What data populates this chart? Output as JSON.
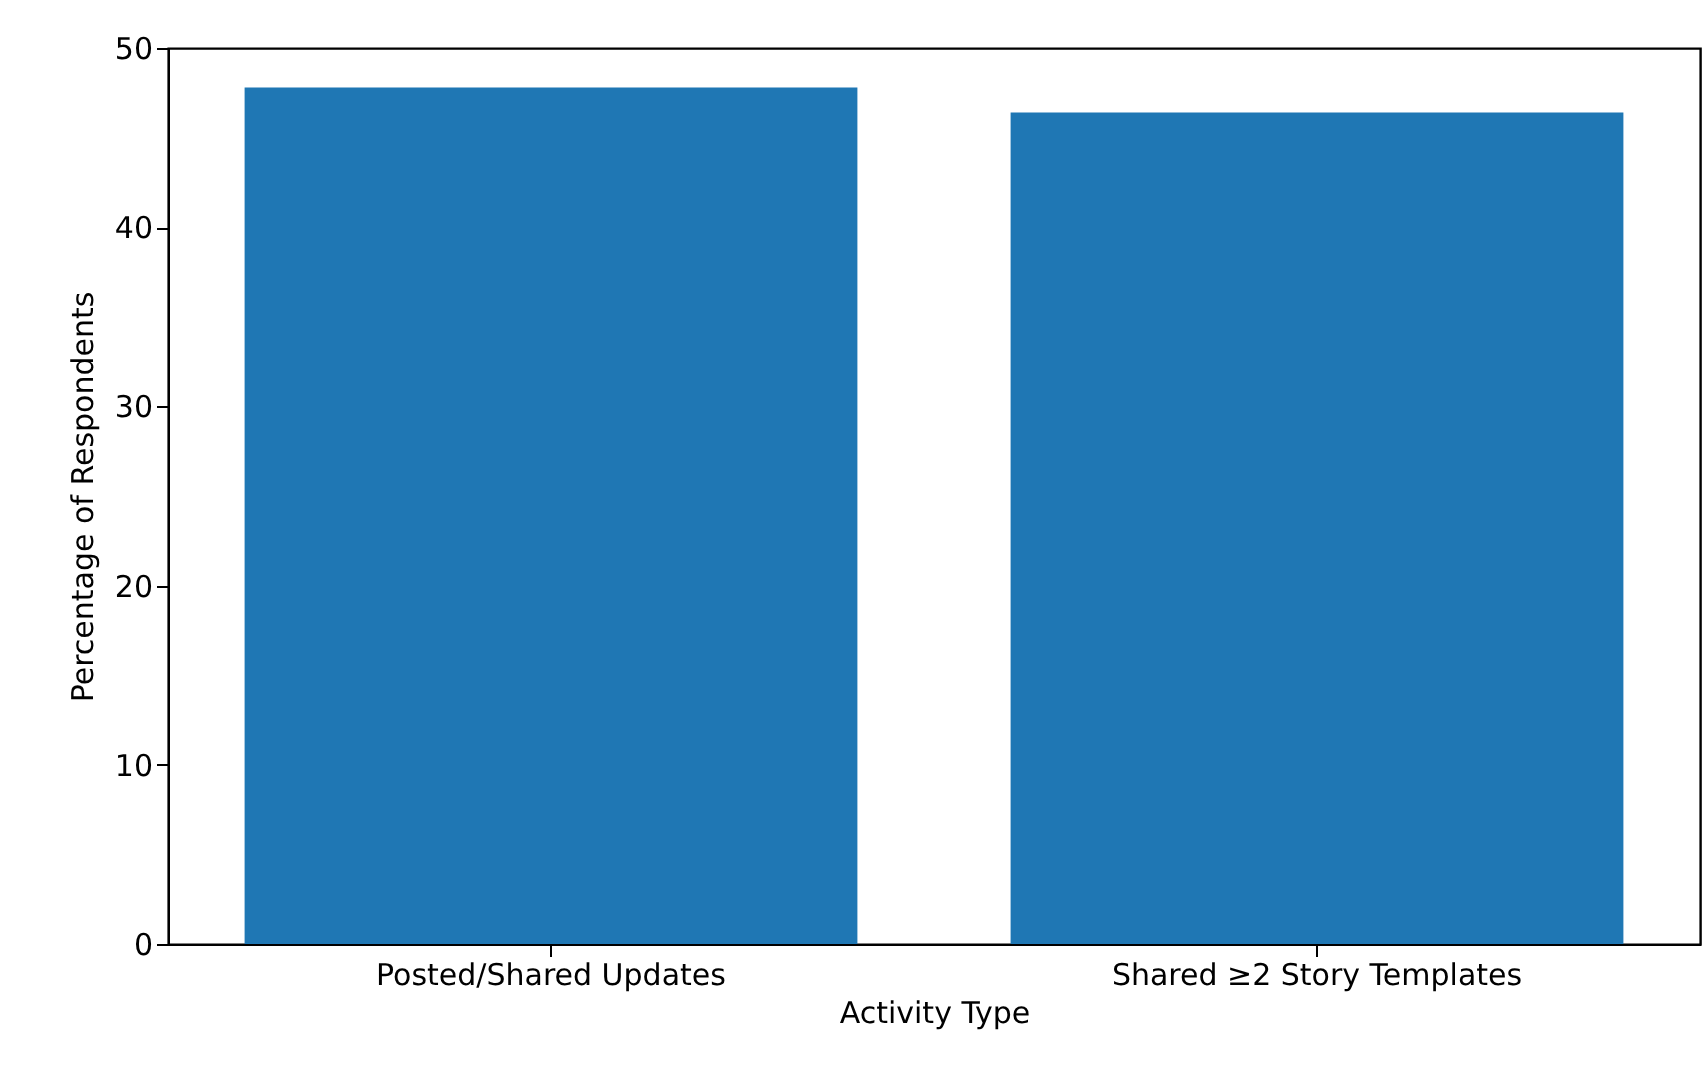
{
  "chart_data": {
    "type": "bar",
    "xlabel": "Activity Type",
    "ylabel": "Percentage of Respondents",
    "categories": [
      "Posted/Shared Updates",
      "Shared ≥2 Story Templates"
    ],
    "values": [
      47.8,
      46.4
    ],
    "color": "#1f77b4",
    "ylim": [
      0,
      50
    ],
    "yticks": [
      0,
      10,
      20,
      30,
      40,
      50
    ],
    "grid": false,
    "legend": false
  }
}
